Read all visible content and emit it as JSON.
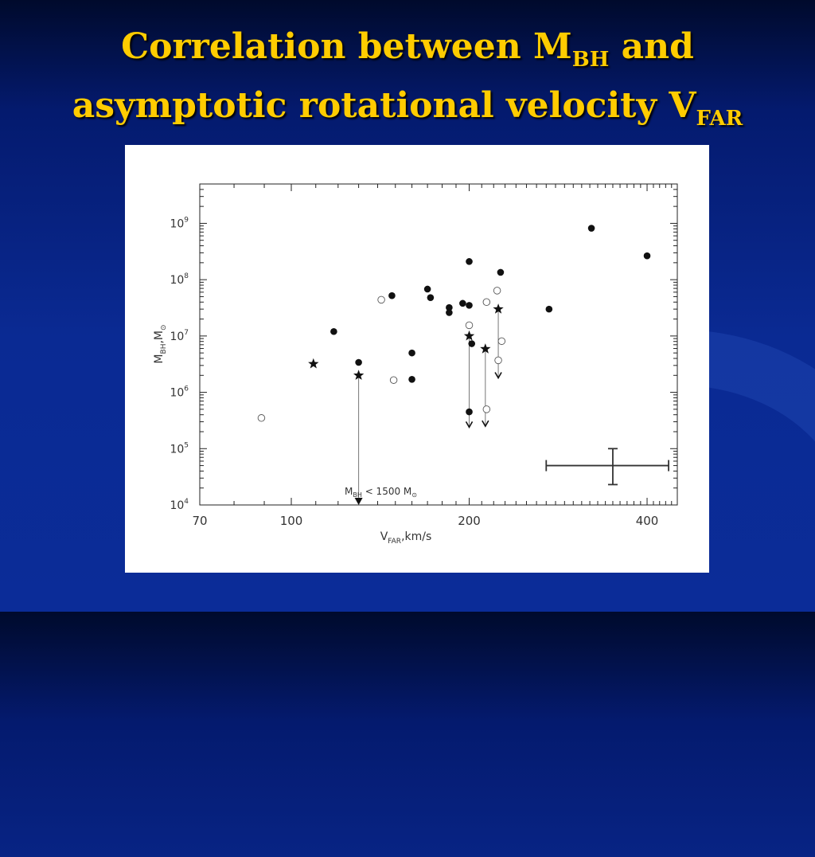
{
  "slide": {
    "title_line1_pre": "Correlation between M",
    "title_line1_sub": "BH",
    "title_line1_post": " and",
    "title_line2_pre": "asymptotic rotational velocity V",
    "title_line2_sub": "FAR"
  },
  "colors": {
    "title": "#ffcc00",
    "background": "#0a2a93",
    "panel": "#ffffff"
  },
  "chart_data": {
    "type": "scatter",
    "x_scale": "log",
    "y_scale": "log",
    "xlim": [
      70,
      450
    ],
    "ylim": [
      10000,
      5000000000
    ],
    "xlabel": {
      "main": "V",
      "sub": "FAR",
      "rest": ",km/s"
    },
    "ylabel": {
      "main": "M",
      "sub1": "BH",
      "mid": ",M",
      "sub2": "⊙"
    },
    "x_ticks": [
      {
        "value": 70,
        "label": "70"
      },
      {
        "value": 100,
        "label": "100"
      },
      {
        "value": 200,
        "label": "200"
      },
      {
        "value": 400,
        "label": "400"
      }
    ],
    "y_ticks": [
      {
        "value": 10000,
        "base": "10",
        "exp": "4"
      },
      {
        "value": 100000,
        "base": "10",
        "exp": "5"
      },
      {
        "value": 1000000,
        "base": "10",
        "exp": "6"
      },
      {
        "value": 10000000,
        "base": "10",
        "exp": "7"
      },
      {
        "value": 100000000,
        "base": "10",
        "exp": "8"
      },
      {
        "value": 1000000000,
        "base": "10",
        "exp": "9"
      }
    ],
    "series": [
      {
        "marker": "filled-circle",
        "points": [
          [
            118,
            12000000
          ],
          [
            130,
            3400000
          ],
          [
            148,
            52000000
          ],
          [
            160,
            5000000
          ],
          [
            160,
            1700000
          ],
          [
            170,
            68000000
          ],
          [
            172,
            48000000
          ],
          [
            185,
            32000000
          ],
          [
            185,
            26000000
          ],
          [
            195,
            38000000
          ],
          [
            200,
            210000000
          ],
          [
            200,
            35000000
          ],
          [
            202,
            7300000
          ],
          [
            200,
            450000
          ],
          [
            226,
            135000000
          ],
          [
            273,
            30000000
          ],
          [
            322,
            820000000
          ],
          [
            400,
            265000000
          ]
        ]
      },
      {
        "marker": "open-circle",
        "points": [
          [
            89,
            350000
          ],
          [
            142,
            44000000
          ],
          [
            149,
            1650000
          ],
          [
            200,
            15500000
          ],
          [
            214,
            40000000
          ],
          [
            223,
            64000000
          ],
          [
            214,
            500000
          ],
          [
            227,
            8100000
          ],
          [
            224,
            3700000
          ]
        ]
      },
      {
        "marker": "star",
        "points": [
          [
            109,
            3200000
          ],
          [
            130,
            2000000
          ],
          [
            200,
            10000000
          ],
          [
            213,
            5900000
          ],
          [
            224,
            30000000
          ]
        ]
      }
    ],
    "upper_limits": [
      {
        "x": 130,
        "from": 2000000,
        "to": 10000
      },
      {
        "x": 200,
        "from": 10000000,
        "to": 240000
      },
      {
        "x": 213,
        "from": 5900000,
        "to": 250000
      },
      {
        "x": 224,
        "from": 30000000,
        "to": 1800000
      }
    ],
    "annotation": {
      "pre": "M",
      "sub1": "BH",
      "mid": " < 1500 M",
      "sub2": "⊙"
    },
    "error_bar": {
      "x": 350,
      "y": 50000,
      "x_low": 270,
      "x_high": 435,
      "y_low": 23000,
      "y_high": 100000
    }
  }
}
